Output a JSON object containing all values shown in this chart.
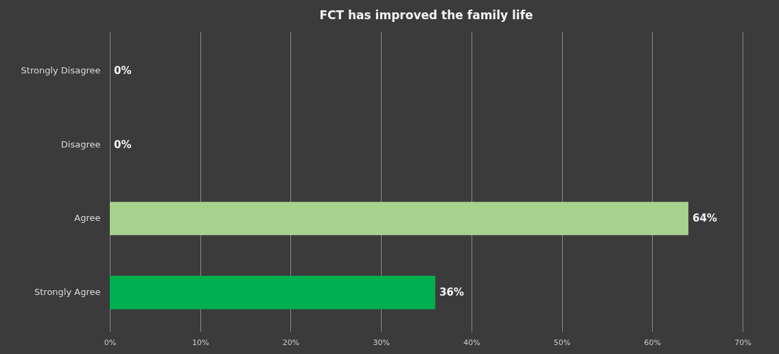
{
  "chart_data": {
    "type": "bar",
    "orientation": "horizontal",
    "title": "FCT has improved the family life",
    "categories": [
      "Strongly Disagree",
      "Disagree",
      "Agree",
      "Strongly Agree"
    ],
    "values": [
      0,
      0,
      64,
      36
    ],
    "colors": [
      "#5c0000",
      "#4a3c36",
      "#a9d18e",
      "#00b050"
    ],
    "value_labels": [
      "0%",
      "0%",
      "64%",
      "36%"
    ],
    "xlim": [
      0,
      70
    ],
    "xticks": [
      {
        "value": 0,
        "label": "0%"
      },
      {
        "value": 10,
        "label": "10%"
      },
      {
        "value": 20,
        "label": "20%"
      },
      {
        "value": 30,
        "label": "30%"
      },
      {
        "value": 40,
        "label": "40%"
      },
      {
        "value": 50,
        "label": "50%"
      },
      {
        "value": 60,
        "label": "60%"
      },
      {
        "value": 70,
        "label": "70%"
      }
    ],
    "grid": "x"
  }
}
